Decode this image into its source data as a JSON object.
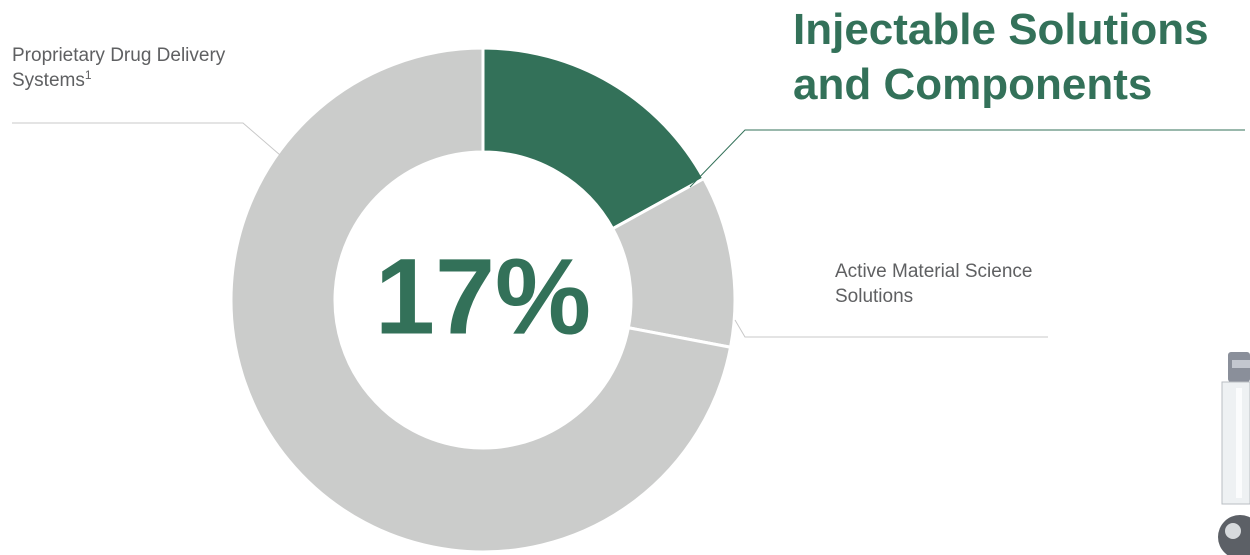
{
  "chart_data": {
    "type": "donut",
    "series": [
      {
        "name": "Injectable Solutions and Components",
        "color": "#337159",
        "values": [
          17
        ]
      },
      {
        "name": "Active Material Science Solutions",
        "color": "#cbcccb",
        "values": [
          11
        ]
      },
      {
        "name": "Proprietary Drug Delivery Systems",
        "footnote": "1",
        "color": "#cbcccb",
        "values": [
          72
        ]
      }
    ],
    "value_labels": [
      "17%",
      null,
      null
    ]
  }
}
